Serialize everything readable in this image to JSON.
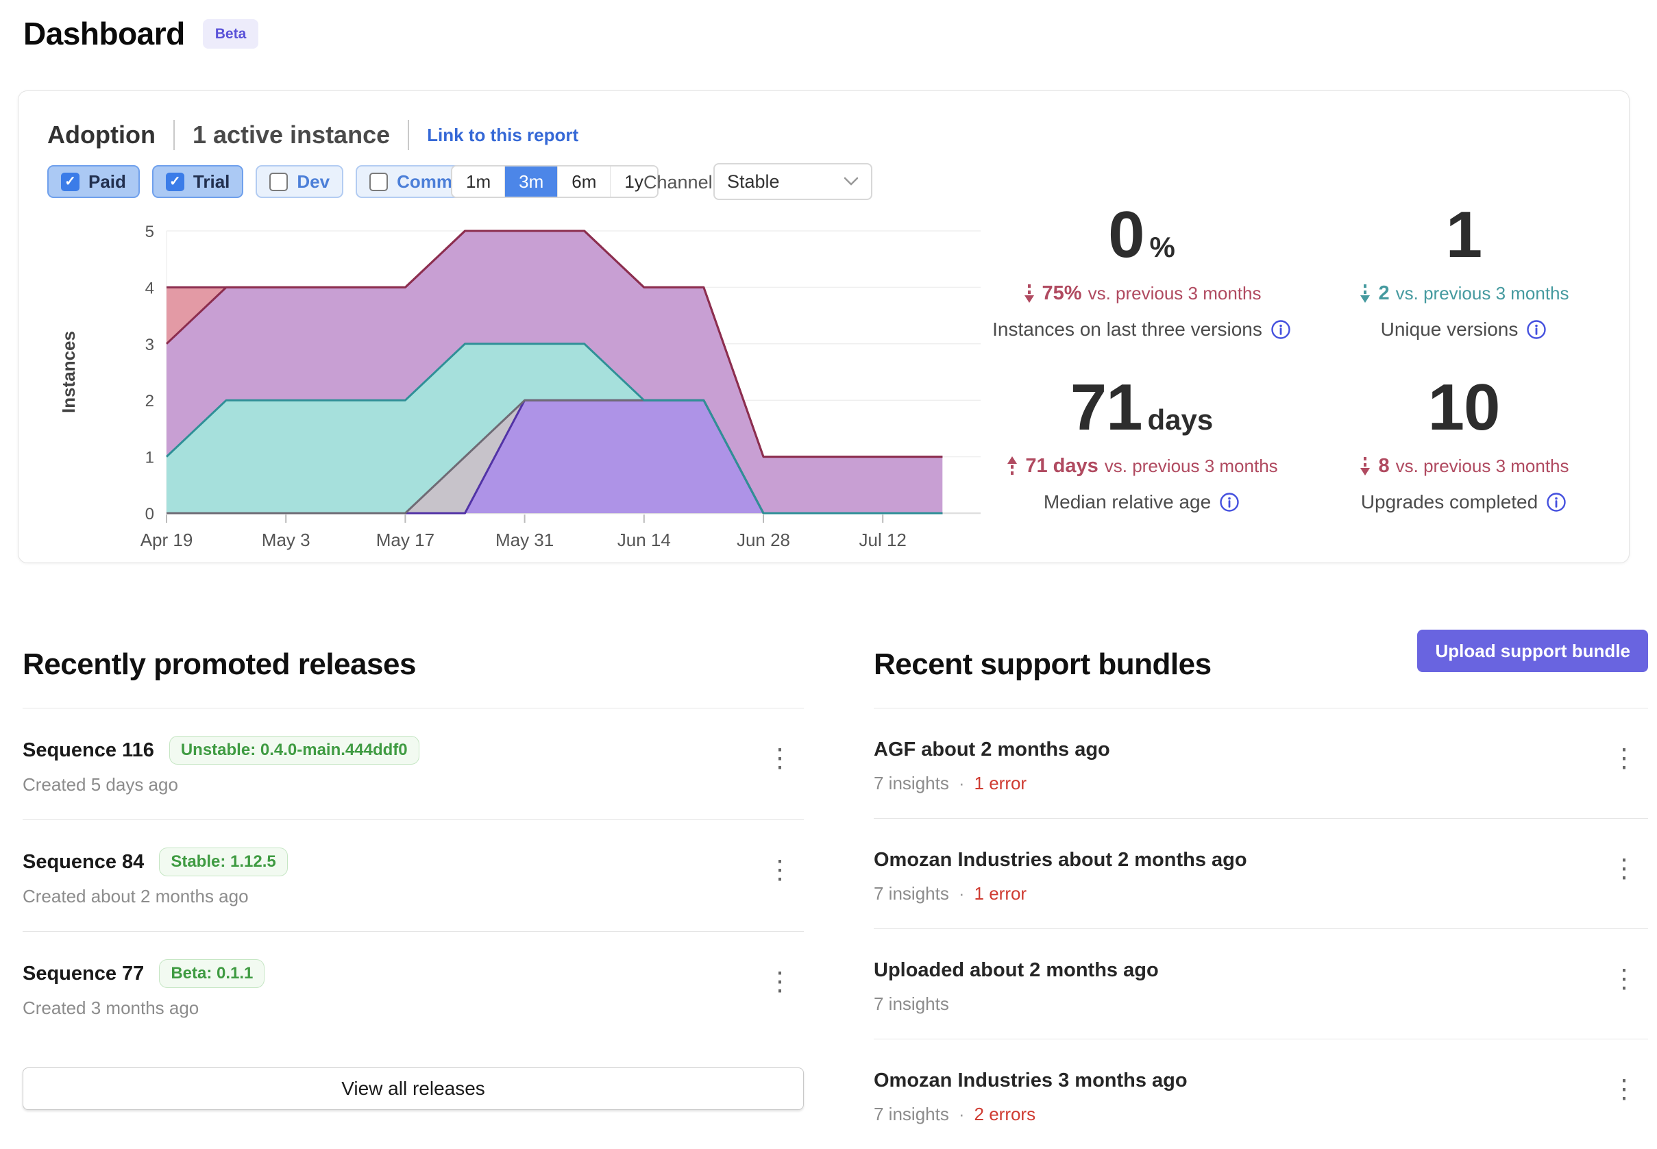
{
  "page": {
    "title": "Dashboard",
    "beta_badge": "Beta"
  },
  "icons": {
    "check": "✓",
    "kebab": "⋮",
    "dot": "·"
  },
  "colors": {
    "accent_blue": "#4C86E8",
    "link_blue": "#3568D6",
    "upload_purple": "#6964E0",
    "delta_red": "#B04A60",
    "delta_teal": "#459A9F",
    "error_red": "#CF3B31",
    "badge_green": "#3F9B42",
    "beta_purple": "#5A52D8",
    "info_blue": "#4450DE"
  },
  "adoption": {
    "title": "Adoption",
    "subtitle": "1 active instance",
    "link": "Link to this report",
    "filters": [
      {
        "label": "Paid",
        "checked": true
      },
      {
        "label": "Trial",
        "checked": true
      },
      {
        "label": "Dev",
        "checked": false
      },
      {
        "label": "Community",
        "checked": false
      }
    ],
    "ranges": [
      "1m",
      "3m",
      "6m",
      "1y"
    ],
    "selected_range": "3m",
    "channel_label": "Channel",
    "channel_value": "Stable",
    "stats": [
      {
        "value": "0",
        "suffix": "%",
        "trend": "down",
        "tone": "red",
        "delta": "75%",
        "delta_rest": "vs. previous 3 months",
        "label": "Instances on last three versions"
      },
      {
        "value": "1",
        "suffix": "",
        "trend": "down",
        "tone": "teal",
        "delta": "2",
        "delta_rest": "vs. previous 3 months",
        "label": "Unique versions"
      },
      {
        "value": "71",
        "suffix": "days",
        "trend": "up",
        "tone": "red",
        "delta": "71 days",
        "delta_rest": "vs. previous 3 months",
        "label": "Median relative age"
      },
      {
        "value": "10",
        "suffix": "",
        "trend": "down",
        "tone": "red",
        "delta": "8",
        "delta_rest": "vs. previous 3 months",
        "label": "Upgrades completed"
      }
    ]
  },
  "chart_data": {
    "type": "area",
    "stacked": true,
    "title": "",
    "xlabel": "",
    "ylabel": "Instances",
    "ylim": [
      0,
      5
    ],
    "yticks": [
      0,
      1,
      2,
      3,
      4,
      5
    ],
    "grid": true,
    "legend": "none",
    "x": [
      "Apr 19",
      "Apr 26",
      "May 3",
      "May 10",
      "May 17",
      "May 24",
      "May 31",
      "Jun 7",
      "Jun 14",
      "Jun 21",
      "Jun 28",
      "Jul 5",
      "Jul 12",
      "Jul 19"
    ],
    "xtick_labels": [
      "Apr 19",
      "May 3",
      "May 17",
      "May 31",
      "Jun 14",
      "Jun 28",
      "Jul 12"
    ],
    "series": [
      {
        "name": "version-purple",
        "fill": "#AE93E7",
        "stroke": "#5233A6",
        "values": [
          0,
          0,
          0,
          0,
          0,
          0,
          2,
          2,
          2,
          2,
          0,
          0,
          0,
          0
        ]
      },
      {
        "name": "version-gray",
        "fill": "#C7C3CA",
        "stroke": "#6F6B75",
        "values": [
          0,
          0,
          0,
          0,
          0,
          1,
          0,
          0,
          0,
          0,
          0,
          0,
          0,
          0
        ]
      },
      {
        "name": "version-teal",
        "fill": "#A6E0DC",
        "stroke": "#2F9097",
        "values": [
          1,
          2,
          2,
          2,
          2,
          2,
          1,
          1,
          0,
          0,
          0,
          0,
          0,
          0
        ]
      },
      {
        "name": "version-mauve",
        "fill": "#C89FD3",
        "stroke": "#8C2E4F",
        "values": [
          2,
          2,
          2,
          2,
          2,
          2,
          2,
          2,
          2,
          2,
          1,
          1,
          1,
          1
        ]
      },
      {
        "name": "version-salmon",
        "fill": "#E39AA5",
        "stroke": "#8C2E4F",
        "values": [
          1,
          0,
          0,
          0,
          0,
          0,
          0,
          0,
          0,
          0,
          0,
          0,
          0,
          0
        ]
      }
    ]
  },
  "releases": {
    "heading": "Recently promoted releases",
    "view_all": "View all releases",
    "items": [
      {
        "title": "Sequence 116",
        "badge": "Unstable: 0.4.0-main.444ddf0",
        "created": "Created 5 days ago"
      },
      {
        "title": "Sequence 84",
        "badge": "Stable: 1.12.5",
        "created": "Created about 2 months ago"
      },
      {
        "title": "Sequence 77",
        "badge": "Beta: 0.1.1",
        "created": "Created 3 months ago"
      }
    ]
  },
  "bundles": {
    "heading": "Recent support bundles",
    "upload_label": "Upload support bundle",
    "items": [
      {
        "title": "AGF about 2 months ago",
        "insights": "7 insights",
        "errors": "1 error"
      },
      {
        "title": "Omozan Industries about 2 months ago",
        "insights": "7 insights",
        "errors": "1 error"
      },
      {
        "title": "Uploaded about 2 months ago",
        "insights": "7 insights",
        "errors": ""
      },
      {
        "title": "Omozan Industries 3 months ago",
        "insights": "7 insights",
        "errors": "2 errors"
      }
    ]
  }
}
